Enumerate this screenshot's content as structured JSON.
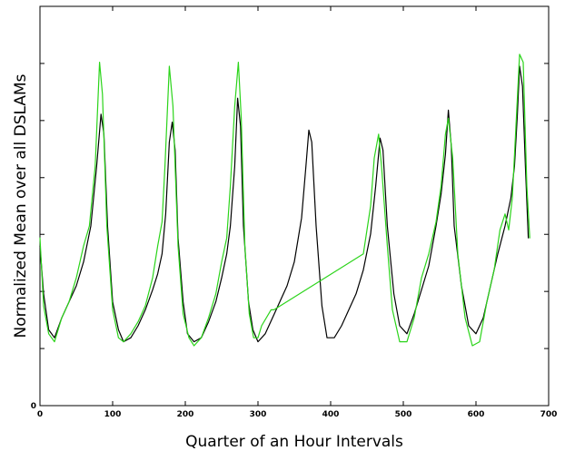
{
  "chart_data": {
    "type": "line",
    "title": "",
    "xlabel": "Quarter of an Hour Intervals",
    "ylabel": "Normalized Mean over all DSLAMs",
    "xlim": [
      0,
      700
    ],
    "ylim": [
      0,
      1
    ],
    "x_ticks": [
      0,
      100,
      200,
      300,
      400,
      500,
      600,
      700
    ],
    "x_tick_labels": [
      "0",
      "100",
      "200",
      "300",
      "400",
      "500",
      "600",
      "700"
    ],
    "y_ticks": [
      0,
      0.143,
      0.286,
      0.429,
      0.571,
      0.714,
      0.857
    ],
    "y_tick_labels": [
      "0",
      "",
      "",
      "",
      "",
      "",
      ""
    ],
    "grid": false,
    "legend": "none",
    "series": [
      {
        "color": "#000000",
        "points": [
          [
            0,
            0.4
          ],
          [
            5,
            0.28
          ],
          [
            12,
            0.19
          ],
          [
            20,
            0.17
          ],
          [
            30,
            0.22
          ],
          [
            40,
            0.26
          ],
          [
            50,
            0.3
          ],
          [
            60,
            0.36
          ],
          [
            70,
            0.45
          ],
          [
            78,
            0.6
          ],
          [
            84,
            0.73
          ],
          [
            88,
            0.68
          ],
          [
            93,
            0.45
          ],
          [
            100,
            0.26
          ],
          [
            108,
            0.19
          ],
          [
            115,
            0.16
          ],
          [
            125,
            0.17
          ],
          [
            135,
            0.2
          ],
          [
            145,
            0.24
          ],
          [
            155,
            0.29
          ],
          [
            162,
            0.33
          ],
          [
            168,
            0.38
          ],
          [
            173,
            0.48
          ],
          [
            178,
            0.66
          ],
          [
            182,
            0.71
          ],
          [
            186,
            0.64
          ],
          [
            190,
            0.42
          ],
          [
            197,
            0.26
          ],
          [
            203,
            0.18
          ],
          [
            212,
            0.16
          ],
          [
            222,
            0.17
          ],
          [
            232,
            0.21
          ],
          [
            242,
            0.26
          ],
          [
            250,
            0.32
          ],
          [
            257,
            0.38
          ],
          [
            262,
            0.45
          ],
          [
            268,
            0.6
          ],
          [
            272,
            0.77
          ],
          [
            276,
            0.7
          ],
          [
            280,
            0.45
          ],
          [
            287,
            0.26
          ],
          [
            293,
            0.19
          ],
          [
            300,
            0.16
          ],
          [
            310,
            0.18
          ],
          [
            320,
            0.22
          ],
          [
            330,
            0.26
          ],
          [
            340,
            0.3
          ],
          [
            350,
            0.36
          ],
          [
            360,
            0.47
          ],
          [
            366,
            0.6
          ],
          [
            370,
            0.69
          ],
          [
            374,
            0.66
          ],
          [
            380,
            0.45
          ],
          [
            388,
            0.25
          ],
          [
            395,
            0.17
          ],
          [
            405,
            0.17
          ],
          [
            415,
            0.2
          ],
          [
            425,
            0.24
          ],
          [
            435,
            0.28
          ],
          [
            445,
            0.34
          ],
          [
            455,
            0.43
          ],
          [
            462,
            0.55
          ],
          [
            468,
            0.67
          ],
          [
            472,
            0.64
          ],
          [
            478,
            0.45
          ],
          [
            487,
            0.28
          ],
          [
            495,
            0.2
          ],
          [
            505,
            0.18
          ],
          [
            515,
            0.23
          ],
          [
            525,
            0.29
          ],
          [
            535,
            0.35
          ],
          [
            545,
            0.45
          ],
          [
            552,
            0.53
          ],
          [
            558,
            0.63
          ],
          [
            562,
            0.74
          ],
          [
            566,
            0.65
          ],
          [
            570,
            0.45
          ],
          [
            580,
            0.3
          ],
          [
            590,
            0.2
          ],
          [
            600,
            0.18
          ],
          [
            610,
            0.22
          ],
          [
            620,
            0.3
          ],
          [
            630,
            0.38
          ],
          [
            640,
            0.45
          ],
          [
            648,
            0.52
          ],
          [
            653,
            0.6
          ],
          [
            657,
            0.73
          ],
          [
            660,
            0.85
          ],
          [
            664,
            0.8
          ],
          [
            668,
            0.6
          ],
          [
            672,
            0.42
          ]
        ]
      },
      {
        "color": "#2bd41a",
        "points": [
          [
            0,
            0.42
          ],
          [
            5,
            0.25
          ],
          [
            12,
            0.18
          ],
          [
            20,
            0.16
          ],
          [
            30,
            0.22
          ],
          [
            40,
            0.26
          ],
          [
            50,
            0.32
          ],
          [
            60,
            0.4
          ],
          [
            68,
            0.45
          ],
          [
            76,
            0.6
          ],
          [
            82,
            0.86
          ],
          [
            86,
            0.78
          ],
          [
            92,
            0.45
          ],
          [
            100,
            0.24
          ],
          [
            108,
            0.17
          ],
          [
            115,
            0.16
          ],
          [
            125,
            0.18
          ],
          [
            135,
            0.21
          ],
          [
            145,
            0.25
          ],
          [
            155,
            0.32
          ],
          [
            162,
            0.4
          ],
          [
            168,
            0.46
          ],
          [
            172,
            0.6
          ],
          [
            178,
            0.85
          ],
          [
            183,
            0.75
          ],
          [
            190,
            0.4
          ],
          [
            197,
            0.23
          ],
          [
            205,
            0.17
          ],
          [
            212,
            0.15
          ],
          [
            222,
            0.17
          ],
          [
            232,
            0.22
          ],
          [
            242,
            0.28
          ],
          [
            250,
            0.36
          ],
          [
            257,
            0.42
          ],
          [
            262,
            0.55
          ],
          [
            268,
            0.75
          ],
          [
            273,
            0.86
          ],
          [
            277,
            0.72
          ],
          [
            282,
            0.4
          ],
          [
            288,
            0.23
          ],
          [
            294,
            0.17
          ],
          [
            300,
            0.17
          ],
          [
            305,
            0.2
          ],
          [
            318,
            0.24
          ],
          [
            322,
            0.24
          ],
          [
            445,
            0.38
          ],
          [
            455,
            0.5
          ],
          [
            460,
            0.62
          ],
          [
            466,
            0.68
          ],
          [
            470,
            0.6
          ],
          [
            478,
            0.4
          ],
          [
            485,
            0.24
          ],
          [
            495,
            0.16
          ],
          [
            505,
            0.16
          ],
          [
            515,
            0.22
          ],
          [
            525,
            0.32
          ],
          [
            535,
            0.38
          ],
          [
            545,
            0.46
          ],
          [
            552,
            0.55
          ],
          [
            558,
            0.68
          ],
          [
            562,
            0.72
          ],
          [
            568,
            0.62
          ],
          [
            575,
            0.38
          ],
          [
            585,
            0.22
          ],
          [
            595,
            0.15
          ],
          [
            605,
            0.16
          ],
          [
            615,
            0.26
          ],
          [
            625,
            0.34
          ],
          [
            633,
            0.44
          ],
          [
            640,
            0.48
          ],
          [
            645,
            0.44
          ],
          [
            650,
            0.52
          ],
          [
            655,
            0.7
          ],
          [
            660,
            0.88
          ],
          [
            665,
            0.86
          ],
          [
            670,
            0.55
          ],
          [
            674,
            0.42
          ]
        ]
      }
    ]
  }
}
